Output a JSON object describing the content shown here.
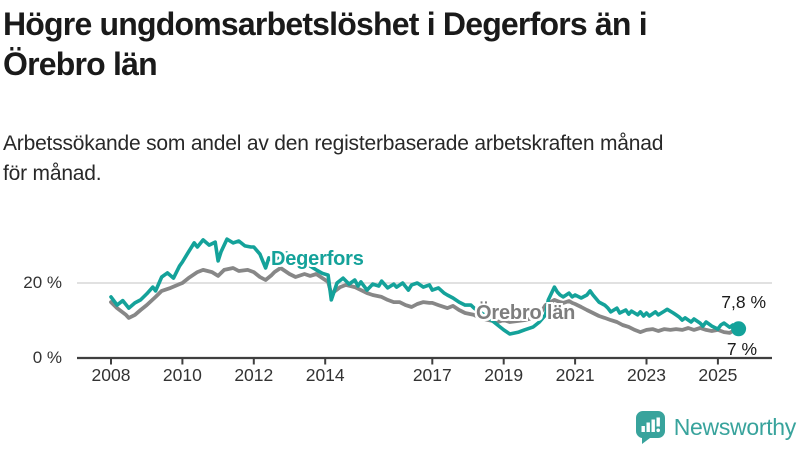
{
  "header": {
    "title_lines": [
      "Högre ungdomsarbetslöshet i Degerfors än i",
      "Örebro län"
    ],
    "subtitle_lines": [
      "Arbetssökande som andel av den registerbaserade arbetskraften månad",
      "för månad."
    ]
  },
  "chart_data": {
    "type": "line",
    "title": "Högre ungdomsarbetslöshet i Degerfors än i Örebro län",
    "subtitle": "Arbetssökande som andel av den registerbaserade arbetskraften månad för månad.",
    "xlabel": "",
    "ylabel": "",
    "unit": "%",
    "xlim": [
      2007.7,
      2026.3
    ],
    "ylim": [
      0,
      35
    ],
    "grid": "single horizontal gridline at 20%",
    "legend_position": "inline labels on lines",
    "x_ticks": [
      {
        "year": 2008,
        "label": "2008"
      },
      {
        "year": 2010,
        "label": "2010"
      },
      {
        "year": 2012,
        "label": "2012"
      },
      {
        "year": 2014,
        "label": "2014"
      },
      {
        "year": 2017,
        "label": "2017"
      },
      {
        "year": 2019,
        "label": "2019"
      },
      {
        "year": 2021,
        "label": "2021"
      },
      {
        "year": 2023,
        "label": "2023"
      },
      {
        "year": 2025,
        "label": "2025"
      }
    ],
    "y_ticks": [
      {
        "value": 20,
        "label": "20 %",
        "grid": true
      },
      {
        "value": 0,
        "label": "0 %",
        "axis": true
      }
    ],
    "series": [
      {
        "name": "Degerfors",
        "color": "#14a29a",
        "end_label": "7,8 %",
        "end_value": 7.8,
        "end_dot": true,
        "points": [
          [
            2008.0,
            16.3
          ],
          [
            2008.17,
            14.1
          ],
          [
            2008.33,
            15.3
          ],
          [
            2008.5,
            13.3
          ],
          [
            2008.67,
            14.7
          ],
          [
            2008.83,
            15.5
          ],
          [
            2009.0,
            17.1
          ],
          [
            2009.17,
            18.9
          ],
          [
            2009.25,
            17.9
          ],
          [
            2009.42,
            21.6
          ],
          [
            2009.58,
            22.7
          ],
          [
            2009.75,
            21.3
          ],
          [
            2009.92,
            24.5
          ],
          [
            2010.0,
            25.6
          ],
          [
            2010.17,
            28.3
          ],
          [
            2010.33,
            30.7
          ],
          [
            2010.42,
            29.6
          ],
          [
            2010.58,
            31.5
          ],
          [
            2010.75,
            30.1
          ],
          [
            2010.92,
            30.9
          ],
          [
            2011.0,
            25.9
          ],
          [
            2011.08,
            28.3
          ],
          [
            2011.25,
            31.7
          ],
          [
            2011.42,
            30.7
          ],
          [
            2011.58,
            31.2
          ],
          [
            2011.75,
            29.9
          ],
          [
            2011.92,
            29.6
          ],
          [
            2012.0,
            29.6
          ],
          [
            2012.17,
            27.7
          ],
          [
            2012.33,
            24.0
          ],
          [
            2012.42,
            26.7
          ],
          [
            2012.58,
            25.6
          ],
          [
            2012.75,
            27.0
          ],
          [
            2012.92,
            28.0
          ],
          [
            2013.08,
            26.5
          ],
          [
            2013.25,
            26.0
          ],
          [
            2013.42,
            25.2
          ],
          [
            2013.58,
            24.5
          ],
          [
            2013.75,
            23.5
          ],
          [
            2013.92,
            22.6
          ],
          [
            2014.08,
            22.1
          ],
          [
            2014.17,
            15.5
          ],
          [
            2014.33,
            20.0
          ],
          [
            2014.5,
            21.3
          ],
          [
            2014.67,
            19.7
          ],
          [
            2014.83,
            20.8
          ],
          [
            2014.92,
            19.2
          ],
          [
            2015.0,
            20.3
          ],
          [
            2015.17,
            18.1
          ],
          [
            2015.33,
            19.7
          ],
          [
            2015.5,
            19.2
          ],
          [
            2015.58,
            20.5
          ],
          [
            2015.75,
            18.7
          ],
          [
            2015.92,
            19.7
          ],
          [
            2016.0,
            18.9
          ],
          [
            2016.17,
            20.0
          ],
          [
            2016.33,
            18.1
          ],
          [
            2016.42,
            19.5
          ],
          [
            2016.58,
            20.0
          ],
          [
            2016.75,
            18.9
          ],
          [
            2016.92,
            19.5
          ],
          [
            2017.0,
            18.1
          ],
          [
            2017.17,
            18.7
          ],
          [
            2017.33,
            17.3
          ],
          [
            2017.42,
            16.8
          ],
          [
            2017.58,
            16.0
          ],
          [
            2017.75,
            14.9
          ],
          [
            2017.92,
            14.1
          ],
          [
            2018.08,
            14.1
          ],
          [
            2018.17,
            13.3
          ],
          [
            2018.33,
            12.3
          ],
          [
            2018.58,
            10.7
          ],
          [
            2018.83,
            8.8
          ],
          [
            2019.0,
            7.5
          ],
          [
            2019.17,
            6.4
          ],
          [
            2019.42,
            6.9
          ],
          [
            2019.58,
            7.5
          ],
          [
            2019.83,
            8.3
          ],
          [
            2020.0,
            9.6
          ],
          [
            2020.17,
            11.5
          ],
          [
            2020.25,
            15.5
          ],
          [
            2020.42,
            18.9
          ],
          [
            2020.5,
            17.6
          ],
          [
            2020.58,
            16.8
          ],
          [
            2020.67,
            16.3
          ],
          [
            2020.83,
            17.3
          ],
          [
            2020.92,
            16.3
          ],
          [
            2021.0,
            16.8
          ],
          [
            2021.17,
            16.0
          ],
          [
            2021.33,
            16.8
          ],
          [
            2021.42,
            17.9
          ],
          [
            2021.5,
            16.8
          ],
          [
            2021.67,
            14.9
          ],
          [
            2021.83,
            14.1
          ],
          [
            2021.92,
            13.3
          ],
          [
            2022.0,
            12.3
          ],
          [
            2022.17,
            13.3
          ],
          [
            2022.25,
            12.0
          ],
          [
            2022.42,
            12.8
          ],
          [
            2022.5,
            11.7
          ],
          [
            2022.58,
            12.5
          ],
          [
            2022.75,
            11.5
          ],
          [
            2022.83,
            12.3
          ],
          [
            2022.92,
            11.2
          ],
          [
            2023.0,
            12.0
          ],
          [
            2023.08,
            11.2
          ],
          [
            2023.25,
            12.3
          ],
          [
            2023.33,
            11.5
          ],
          [
            2023.5,
            12.5
          ],
          [
            2023.58,
            13.0
          ],
          [
            2023.75,
            12.0
          ],
          [
            2023.83,
            11.5
          ],
          [
            2023.92,
            10.9
          ],
          [
            2024.0,
            10.1
          ],
          [
            2024.08,
            10.7
          ],
          [
            2024.25,
            9.6
          ],
          [
            2024.33,
            10.4
          ],
          [
            2024.5,
            9.3
          ],
          [
            2024.58,
            8.5
          ],
          [
            2024.67,
            9.6
          ],
          [
            2024.83,
            8.5
          ],
          [
            2025.0,
            7.7
          ],
          [
            2025.08,
            8.8
          ],
          [
            2025.17,
            9.3
          ],
          [
            2025.33,
            8.2
          ],
          [
            2025.42,
            8.8
          ],
          [
            2025.58,
            7.8
          ]
        ]
      },
      {
        "name": "Örebro län",
        "color": "#878787",
        "end_label": "7 %",
        "end_value": 7.0,
        "end_dot": false,
        "points": [
          [
            2008.0,
            14.9
          ],
          [
            2008.17,
            13.3
          ],
          [
            2008.42,
            11.5
          ],
          [
            2008.5,
            10.7
          ],
          [
            2008.67,
            11.5
          ],
          [
            2008.83,
            12.8
          ],
          [
            2009.0,
            14.1
          ],
          [
            2009.25,
            16.3
          ],
          [
            2009.42,
            17.9
          ],
          [
            2009.67,
            18.7
          ],
          [
            2009.92,
            19.7
          ],
          [
            2010.0,
            20.0
          ],
          [
            2010.17,
            21.3
          ],
          [
            2010.42,
            22.9
          ],
          [
            2010.58,
            23.5
          ],
          [
            2010.83,
            22.9
          ],
          [
            2011.0,
            21.9
          ],
          [
            2011.17,
            23.5
          ],
          [
            2011.42,
            24.0
          ],
          [
            2011.58,
            23.2
          ],
          [
            2011.83,
            23.5
          ],
          [
            2012.0,
            22.9
          ],
          [
            2012.17,
            21.6
          ],
          [
            2012.33,
            20.8
          ],
          [
            2012.5,
            22.1
          ],
          [
            2012.58,
            22.9
          ],
          [
            2012.75,
            24.0
          ],
          [
            2013.0,
            22.4
          ],
          [
            2013.17,
            21.6
          ],
          [
            2013.42,
            22.4
          ],
          [
            2013.58,
            21.9
          ],
          [
            2013.75,
            22.4
          ],
          [
            2013.92,
            21.3
          ],
          [
            2014.08,
            20.3
          ],
          [
            2014.17,
            17.1
          ],
          [
            2014.42,
            18.9
          ],
          [
            2014.58,
            19.5
          ],
          [
            2014.83,
            18.9
          ],
          [
            2015.0,
            18.1
          ],
          [
            2015.17,
            17.3
          ],
          [
            2015.33,
            16.8
          ],
          [
            2015.58,
            16.3
          ],
          [
            2015.75,
            15.5
          ],
          [
            2015.92,
            14.9
          ],
          [
            2016.08,
            14.9
          ],
          [
            2016.25,
            14.1
          ],
          [
            2016.42,
            13.6
          ],
          [
            2016.58,
            14.4
          ],
          [
            2016.75,
            14.9
          ],
          [
            2016.92,
            14.7
          ],
          [
            2017.0,
            14.7
          ],
          [
            2017.17,
            14.1
          ],
          [
            2017.42,
            13.3
          ],
          [
            2017.58,
            13.9
          ],
          [
            2017.75,
            12.8
          ],
          [
            2017.92,
            12.0
          ],
          [
            2018.17,
            11.5
          ],
          [
            2018.33,
            10.7
          ],
          [
            2018.58,
            10.1
          ],
          [
            2018.83,
            9.6
          ],
          [
            2019.0,
            10.1
          ],
          [
            2019.17,
            9.6
          ],
          [
            2019.42,
            9.9
          ],
          [
            2019.58,
            10.1
          ],
          [
            2019.83,
            10.7
          ],
          [
            2020.0,
            11.5
          ],
          [
            2020.17,
            14.1
          ],
          [
            2020.42,
            15.5
          ],
          [
            2020.58,
            14.9
          ],
          [
            2020.67,
            14.7
          ],
          [
            2020.83,
            15.2
          ],
          [
            2020.92,
            14.7
          ],
          [
            2021.0,
            14.4
          ],
          [
            2021.17,
            13.6
          ],
          [
            2021.33,
            12.8
          ],
          [
            2021.5,
            12.0
          ],
          [
            2021.67,
            11.2
          ],
          [
            2021.83,
            10.7
          ],
          [
            2022.0,
            10.1
          ],
          [
            2022.17,
            9.6
          ],
          [
            2022.33,
            8.8
          ],
          [
            2022.5,
            8.3
          ],
          [
            2022.67,
            7.5
          ],
          [
            2022.83,
            6.9
          ],
          [
            2023.0,
            7.5
          ],
          [
            2023.17,
            7.7
          ],
          [
            2023.33,
            7.2
          ],
          [
            2023.5,
            7.7
          ],
          [
            2023.67,
            7.5
          ],
          [
            2023.83,
            7.7
          ],
          [
            2024.0,
            7.5
          ],
          [
            2024.17,
            8.0
          ],
          [
            2024.33,
            7.5
          ],
          [
            2024.5,
            8.0
          ],
          [
            2024.67,
            7.5
          ],
          [
            2024.83,
            7.2
          ],
          [
            2025.0,
            7.5
          ],
          [
            2025.17,
            6.9
          ],
          [
            2025.33,
            6.7
          ],
          [
            2025.42,
            7.2
          ],
          [
            2025.58,
            7.0
          ]
        ]
      }
    ]
  },
  "branding": {
    "logo_text": "Newsworthy",
    "logo_icon": "bar-chart-speech-bubble-icon",
    "accent_color": "#38a39c"
  },
  "colors": {
    "title": "#1a1a1a",
    "axis_text": "#333333",
    "gridline": "#e1e1e1",
    "axis_line": "#3f3f3f"
  }
}
